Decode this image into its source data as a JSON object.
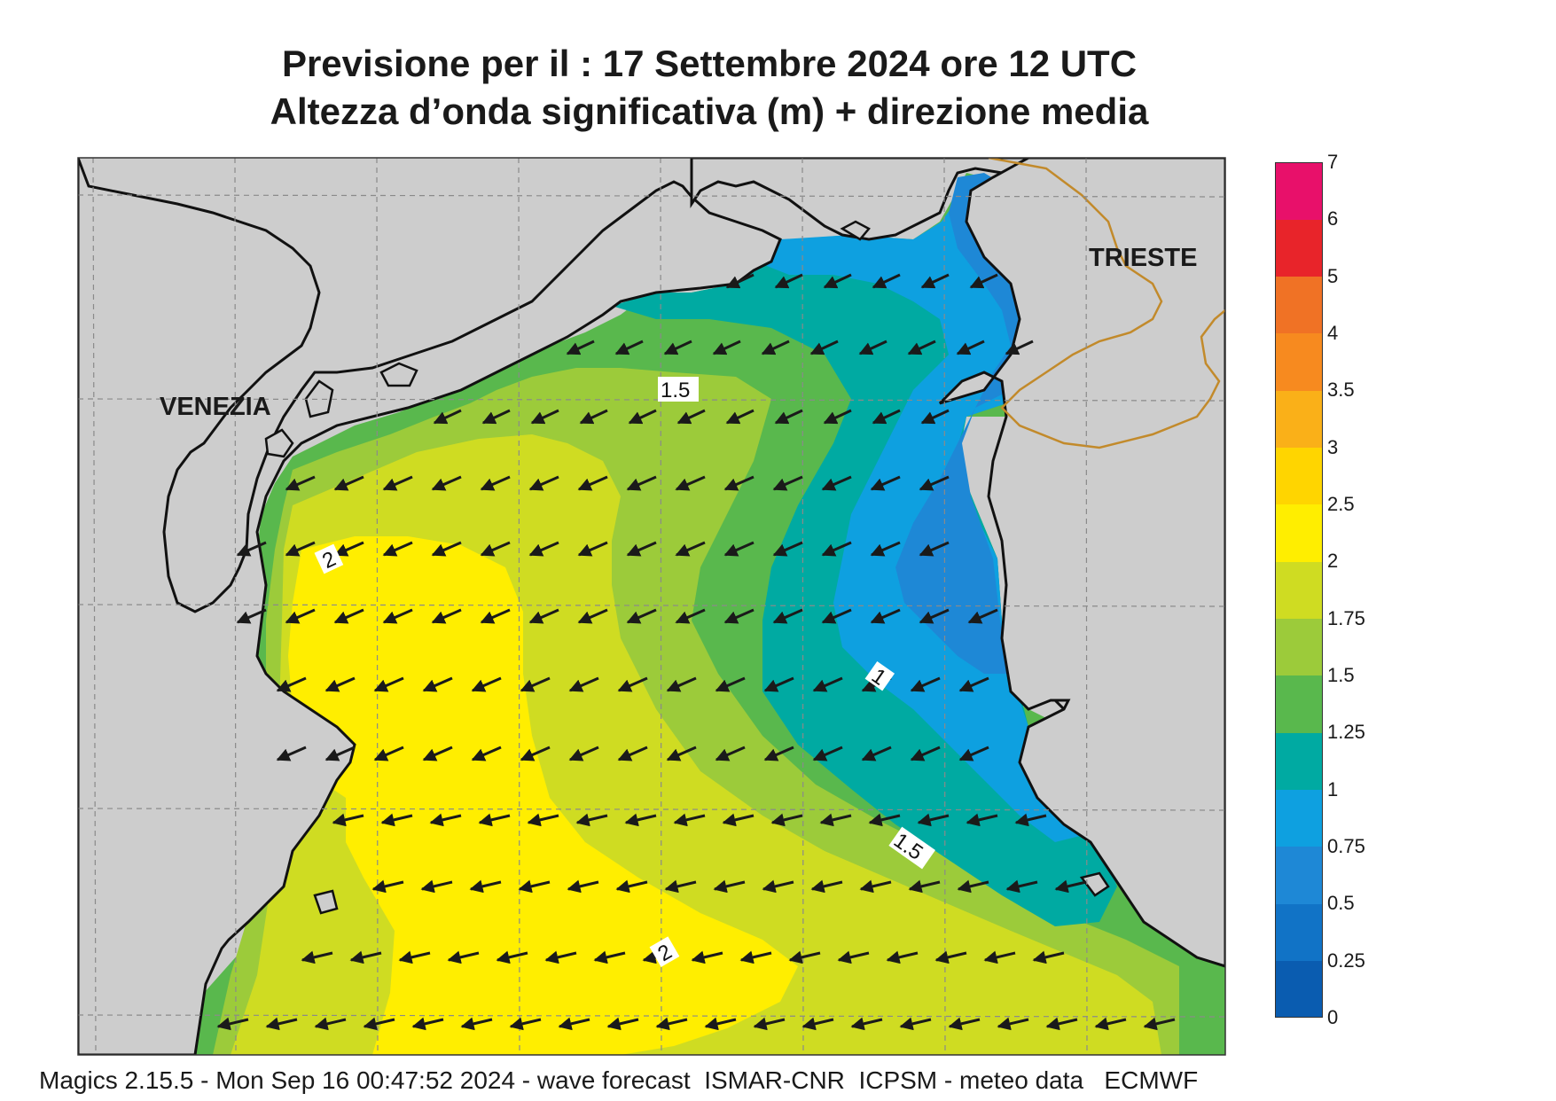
{
  "title": {
    "line1": "Previsione per il  :  17 Settembre 2024   ore 12 UTC",
    "line2": "Altezza d’onda significativa (m) + direzione media"
  },
  "map_labels": {
    "venezia": "VENEZIA",
    "trieste": "TRIESTE",
    "contours": [
      "1.5",
      "2",
      "1",
      "1.5",
      "2"
    ]
  },
  "legend": {
    "levels": [
      "0",
      "0.25",
      "0.5",
      "0.75",
      "1",
      "1.25",
      "1.5",
      "1.75",
      "2",
      "2.5",
      "3",
      "3.5",
      "4",
      "5",
      "6",
      "7"
    ],
    "colors": [
      "#0a5cb0",
      "#1173c6",
      "#1e88d6",
      "#0ea0e0",
      "#00aaa2",
      "#59b84d",
      "#9ccb3a",
      "#cfdc22",
      "#ffee00",
      "#ffd500",
      "#fab018",
      "#f78a1f",
      "#f07225",
      "#e8242a",
      "#e8106a"
    ]
  },
  "colors": {
    "land": "#cdcdcd",
    "coast": "#111111",
    "border": "#c28a2b",
    "arrow": "#1a1a1a"
  },
  "footer": "Magics 2.15.5 - Mon Sep 16 00:47:52 2024 - wave forecast  ISMAR-CNR  ICPSM - meteo data   ECMWF"
}
